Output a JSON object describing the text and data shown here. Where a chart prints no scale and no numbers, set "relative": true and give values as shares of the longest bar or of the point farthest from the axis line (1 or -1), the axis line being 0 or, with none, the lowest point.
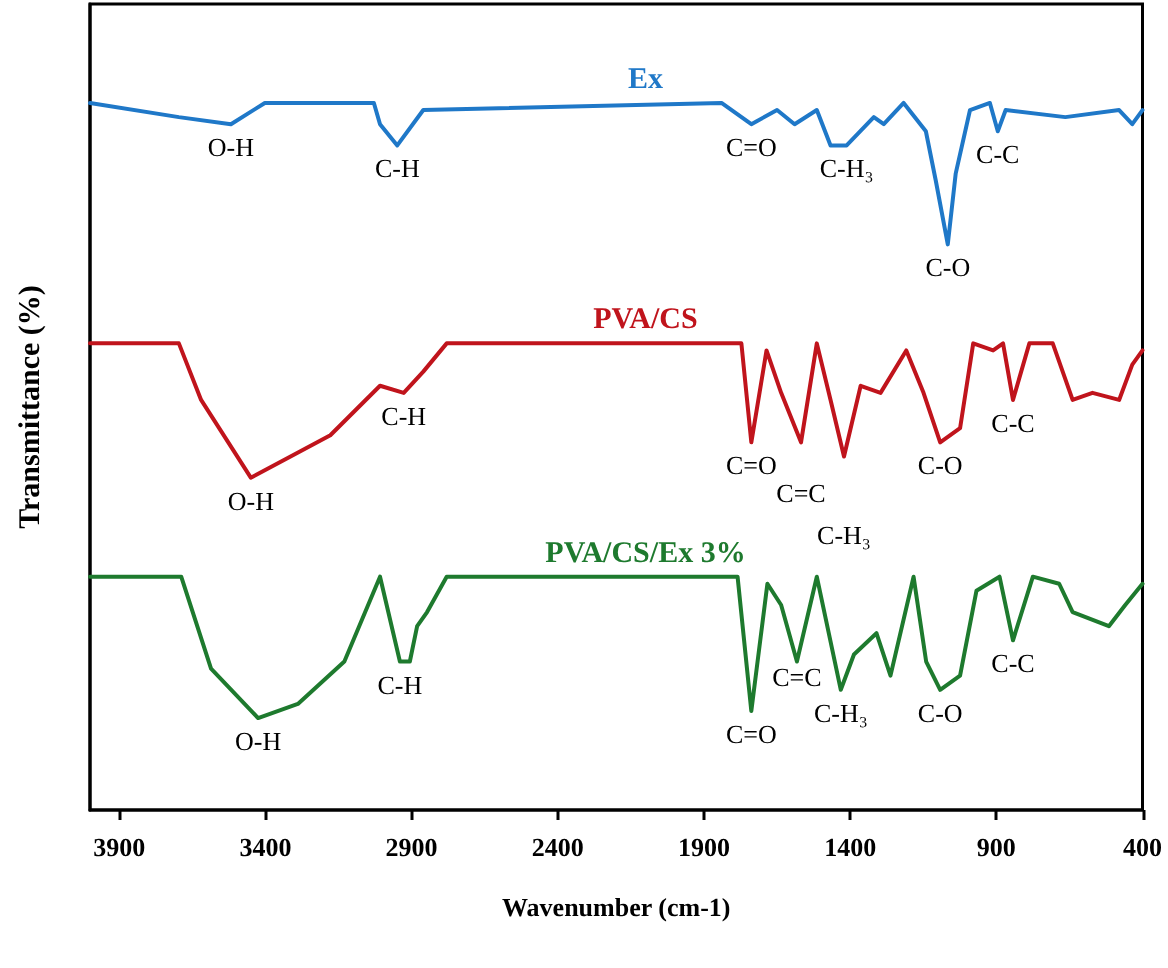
{
  "chart_data": {
    "type": "line",
    "relative": true,
    "xlabel": "Wavenumber (cm-1)",
    "ylabel": "Transmittance (%)",
    "xlim": [
      4000,
      400
    ],
    "xticks": [
      3900,
      3400,
      2900,
      2400,
      1900,
      1400,
      900,
      400
    ],
    "tick_labels": "x",
    "grid": false,
    "legend": false,
    "marker": "none",
    "line_style": "solid",
    "series": [
      {
        "name": "Ex",
        "color": "#1f78c8",
        "x": [
          4000,
          3696,
          3518,
          3402,
          3029,
          3008,
          2949,
          2860,
          1840,
          1738,
          1650,
          1590,
          1514,
          1467,
          1412,
          1319,
          1285,
          1217,
          1141,
          1107,
          1066,
          1039,
          990,
          922,
          895,
          868,
          664,
          480,
          435,
          400
        ],
        "values": [
          1.0,
          0.98,
          0.97,
          1.0,
          1.0,
          0.97,
          0.94,
          0.99,
          1.0,
          0.97,
          0.99,
          0.97,
          0.99,
          0.94,
          0.94,
          0.98,
          0.97,
          1.0,
          0.96,
          0.89,
          0.8,
          0.9,
          0.99,
          1.0,
          0.96,
          0.99,
          0.98,
          0.99,
          0.97,
          0.99
        ]
      },
      {
        "name": "PVA/CS",
        "color": "#c0141c",
        "x": [
          4000,
          3696,
          3620,
          3450,
          3314,
          3178,
          3008,
          2927,
          2860,
          2780,
          1772,
          1738,
          1686,
          1636,
          1568,
          1514,
          1467,
          1421,
          1364,
          1296,
          1208,
          1149,
          1092,
          1024,
          979,
          911,
          877,
          843,
          787,
          707,
          639,
          571,
          480,
          435,
          400
        ],
        "values": [
          0.66,
          0.66,
          0.58,
          0.47,
          0.5,
          0.53,
          0.6,
          0.59,
          0.62,
          0.66,
          0.66,
          0.52,
          0.65,
          0.59,
          0.52,
          0.66,
          0.58,
          0.5,
          0.6,
          0.59,
          0.65,
          0.59,
          0.52,
          0.54,
          0.66,
          0.65,
          0.66,
          0.58,
          0.66,
          0.66,
          0.58,
          0.59,
          0.58,
          0.63,
          0.65
        ]
      },
      {
        "name": "PVA/CS/Ex 3%",
        "color": "#1e7a2e",
        "x": [
          4000,
          3688,
          3586,
          3425,
          3289,
          3130,
          3008,
          2940,
          2906,
          2881,
          2847,
          2780,
          1785,
          1738,
          1683,
          1636,
          1582,
          1514,
          1432,
          1387,
          1310,
          1262,
          1183,
          1140,
          1092,
          1024,
          968,
          889,
          843,
          775,
          685,
          639,
          515,
          459,
          400
        ],
        "values": [
          0.33,
          0.33,
          0.2,
          0.13,
          0.15,
          0.21,
          0.33,
          0.21,
          0.21,
          0.26,
          0.28,
          0.33,
          0.33,
          0.14,
          0.32,
          0.29,
          0.21,
          0.33,
          0.17,
          0.22,
          0.25,
          0.19,
          0.33,
          0.21,
          0.17,
          0.19,
          0.31,
          0.33,
          0.24,
          0.33,
          0.32,
          0.28,
          0.26,
          0.29,
          0.32
        ]
      }
    ],
    "annotations": [
      {
        "text": "O-H",
        "x": 3518,
        "y": 0.97
      },
      {
        "text": "C-H",
        "x": 2949,
        "y": 0.94
      },
      {
        "text": "C=O",
        "x": 1738,
        "y": 0.97
      },
      {
        "text": "C-H₃",
        "x": 1412,
        "y": 0.94
      },
      {
        "text": "C-O",
        "x": 1066,
        "y": 0.8
      },
      {
        "text": "C-C",
        "x": 895,
        "y": 0.96
      },
      {
        "text": "O-H",
        "x": 3450,
        "y": 0.47
      },
      {
        "text": "C-H",
        "x": 2927,
        "y": 0.59
      },
      {
        "text": "C=O",
        "x": 1738,
        "y": 0.52
      },
      {
        "text": "C=C",
        "x": 1568,
        "y": 0.52
      },
      {
        "text": "C-H₃",
        "x": 1421,
        "y": 0.5
      },
      {
        "text": "C-O",
        "x": 1092,
        "y": 0.52
      },
      {
        "text": "C-C",
        "x": 843,
        "y": 0.58
      },
      {
        "text": "O-H",
        "x": 3425,
        "y": 0.13
      },
      {
        "text": "C-H",
        "x": 2940,
        "y": 0.21
      },
      {
        "text": "C=O",
        "x": 1738,
        "y": 0.14
      },
      {
        "text": "C=C",
        "x": 1582,
        "y": 0.22
      },
      {
        "text": "C-H₃",
        "x": 1432,
        "y": 0.17
      },
      {
        "text": "C-O",
        "x": 1092,
        "y": 0.17
      },
      {
        "text": "C-C",
        "x": 843,
        "y": 0.24
      }
    ]
  }
}
